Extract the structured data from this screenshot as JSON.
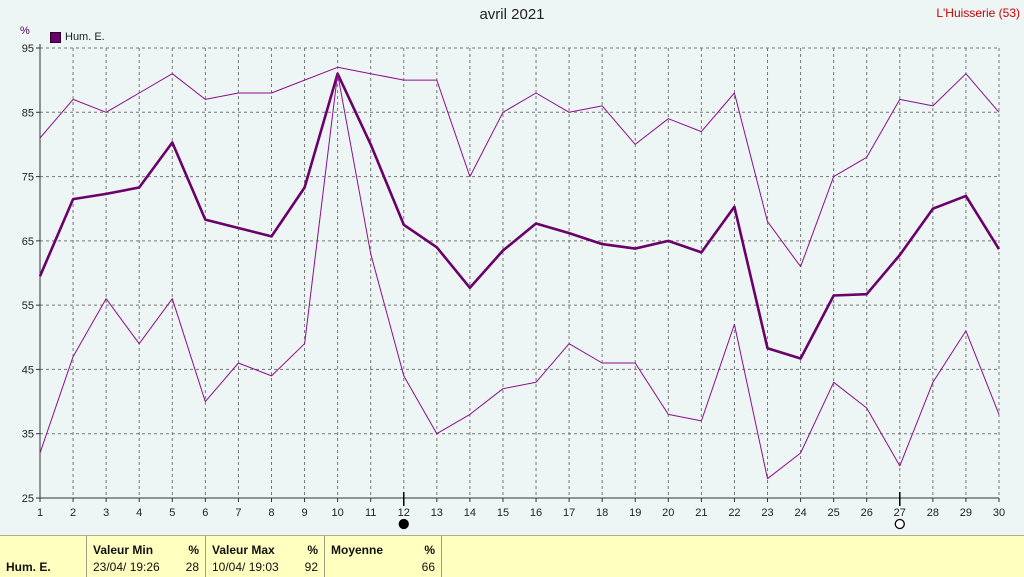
{
  "header": {
    "title": "avril 2021",
    "location": "L'Huisserie (53)",
    "unit": "%",
    "legend": "Hum. E."
  },
  "chart_data": {
    "type": "line",
    "title": "avril 2021",
    "ylabel": "%",
    "ylim": [
      25,
      95
    ],
    "yticks": [
      25,
      35,
      45,
      55,
      65,
      75,
      85,
      95
    ],
    "x": [
      1,
      2,
      3,
      4,
      5,
      6,
      7,
      8,
      9,
      10,
      11,
      12,
      13,
      14,
      15,
      16,
      17,
      18,
      19,
      20,
      21,
      22,
      23,
      24,
      25,
      26,
      27,
      28,
      29,
      30
    ],
    "grid": true,
    "series": [
      {
        "name": "Hum. E.",
        "role": "mean",
        "color": "#6a006a",
        "values": [
          59.5,
          71.5,
          72.3,
          73.3,
          80.3,
          68.3,
          67,
          65.7,
          73.3,
          91,
          80,
          67.5,
          64,
          57.7,
          63.5,
          67.7,
          66.2,
          64.5,
          63.8,
          65,
          63.2,
          70.3,
          48.3,
          46.7,
          56.5,
          56.7,
          62.8,
          70,
          72,
          63.7
        ]
      },
      {
        "role": "max",
        "color": "#8a108a",
        "values": [
          81,
          87,
          85,
          88,
          91,
          87,
          88,
          88,
          90,
          92,
          91,
          90,
          90,
          75,
          85,
          88,
          85,
          86,
          80,
          84,
          82,
          88,
          68,
          61,
          75,
          78,
          87,
          86,
          91,
          85
        ]
      },
      {
        "role": "min",
        "color": "#8a108a",
        "values": [
          32,
          47,
          56,
          49,
          56,
          40,
          46,
          44,
          49,
          91,
          63,
          44,
          35,
          38,
          42,
          43,
          49,
          46,
          46,
          38,
          37,
          52,
          28,
          32,
          43,
          39,
          30,
          43,
          51,
          38
        ]
      }
    ],
    "moon_phases": [
      {
        "day": 12,
        "phase": "new"
      },
      {
        "day": 27,
        "phase": "full"
      }
    ]
  },
  "footer": {
    "row_label": "Hum. E.",
    "min_header": "Valeur Min",
    "min_unit": "%",
    "min_time": "23/04/  19:26",
    "min_value": "28",
    "max_header": "Valeur Max",
    "max_unit": "%",
    "max_time": "10/04/  19:03",
    "max_value": "92",
    "mean_header": "Moyenne",
    "mean_unit": "%",
    "mean_value": "66"
  }
}
